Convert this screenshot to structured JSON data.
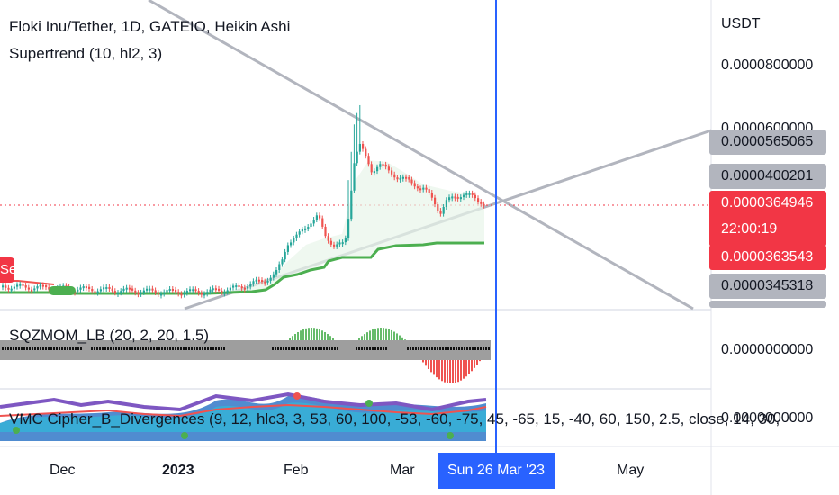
{
  "chart": {
    "title": "Floki Inu/Tether, 1D, GATEIO, Heikin Ashi",
    "indicator_supertrend": "Supertrend (10, hl2, 3)",
    "indicator_sqzmom": "SQZMOM_LB (20, 2, 20, 1.5)",
    "indicator_vmc": "VMC Cipher_B_Divergences (9, 12, hlc3, 3, 53, 60, 100, -53, -60, -75, 45, -65, 15, -40, 60, 150, 2.5, close, 14, 30,",
    "sell_label": "Sell",
    "colors": {
      "up": "#26a69a",
      "down": "#ef5350",
      "supertrend": "#4caf50",
      "crosshair": "#2962ff",
      "trendline": "#b2b5be"
    }
  },
  "price_axis": {
    "currency": "USDT",
    "level_top": "0.0000800000",
    "level_hidden_1": "0.0000600000",
    "tag_upper_line": "0.0000565065",
    "tag_high": "0.0000400201",
    "tag_last": "0.0000364946",
    "countdown": "22:00:19",
    "tag_supertrend": "0.0000363543",
    "tag_lower": "0.0000345318",
    "sqz_value": "0.0000000000",
    "vmc_value": "0.0000000000"
  },
  "time_axis": {
    "dec": "Dec",
    "year": "2023",
    "feb": "Feb",
    "mar": "Mar",
    "cursor": "Sun 26 Mar '23",
    "may": "May"
  }
}
